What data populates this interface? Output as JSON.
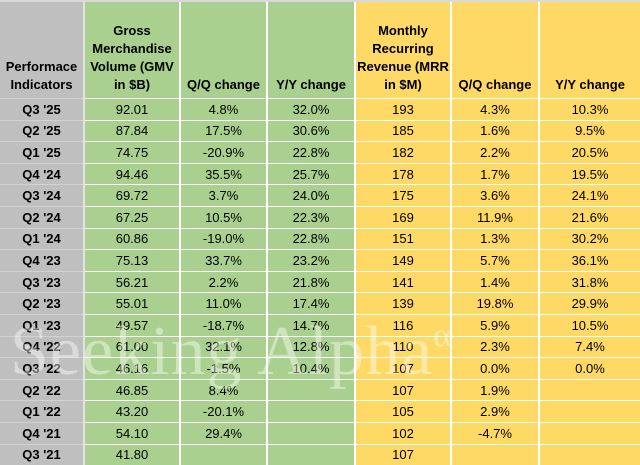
{
  "table": {
    "corner_header": "Performace Indicators",
    "headers": {
      "gmv": "Gross Merchandise Volume (GMV in $B)",
      "gmv_qq": "Q/Q change",
      "gmv_yy": "Y/Y change",
      "mrr": "Monthly Recurring Revenue (MRR in $M)",
      "mrr_qq": "Q/Q change",
      "mrr_yy": "Y/Y change"
    },
    "rows": [
      {
        "period": "Q3 '25",
        "gmv": "92.01",
        "gmv_qq": "4.8%",
        "gmv_yy": "32.0%",
        "mrr": "193",
        "mrr_qq": "4.3%",
        "mrr_yy": "10.3%"
      },
      {
        "period": "Q2 '25",
        "gmv": "87.84",
        "gmv_qq": "17.5%",
        "gmv_yy": "30.6%",
        "mrr": "185",
        "mrr_qq": "1.6%",
        "mrr_yy": "9.5%"
      },
      {
        "period": "Q1 '25",
        "gmv": "74.75",
        "gmv_qq": "-20.9%",
        "gmv_yy": "22.8%",
        "mrr": "182",
        "mrr_qq": "2.2%",
        "mrr_yy": "20.5%"
      },
      {
        "period": "Q4 '24",
        "gmv": "94.46",
        "gmv_qq": "35.5%",
        "gmv_yy": "25.7%",
        "mrr": "178",
        "mrr_qq": "1.7%",
        "mrr_yy": "19.5%"
      },
      {
        "period": "Q3 '24",
        "gmv": "69.72",
        "gmv_qq": "3.7%",
        "gmv_yy": "24.0%",
        "mrr": "175",
        "mrr_qq": "3.6%",
        "mrr_yy": "24.1%"
      },
      {
        "period": "Q2 '24",
        "gmv": "67.25",
        "gmv_qq": "10.5%",
        "gmv_yy": "22.3%",
        "mrr": "169",
        "mrr_qq": "11.9%",
        "mrr_yy": "21.6%"
      },
      {
        "period": "Q1 '24",
        "gmv": "60.86",
        "gmv_qq": "-19.0%",
        "gmv_yy": "22.8%",
        "mrr": "151",
        "mrr_qq": "1.3%",
        "mrr_yy": "30.2%"
      },
      {
        "period": "Q4 '23",
        "gmv": "75.13",
        "gmv_qq": "33.7%",
        "gmv_yy": "23.2%",
        "mrr": "149",
        "mrr_qq": "5.7%",
        "mrr_yy": "36.1%"
      },
      {
        "period": "Q3 '23",
        "gmv": "56.21",
        "gmv_qq": "2.2%",
        "gmv_yy": "21.8%",
        "mrr": "141",
        "mrr_qq": "1.4%",
        "mrr_yy": "31.8%"
      },
      {
        "period": "Q2 '23",
        "gmv": "55.01",
        "gmv_qq": "11.0%",
        "gmv_yy": "17.4%",
        "mrr": "139",
        "mrr_qq": "19.8%",
        "mrr_yy": "29.9%"
      },
      {
        "period": "Q1 '23",
        "gmv": "49.57",
        "gmv_qq": "-18.7%",
        "gmv_yy": "14.7%",
        "mrr": "116",
        "mrr_qq": "5.9%",
        "mrr_yy": "10.5%"
      },
      {
        "period": "Q4 '22",
        "gmv": "61.00",
        "gmv_qq": "32.1%",
        "gmv_yy": "12.8%",
        "mrr": "110",
        "mrr_qq": "2.3%",
        "mrr_yy": "7.4%"
      },
      {
        "period": "Q3 '22",
        "gmv": "46.16",
        "gmv_qq": "-1.5%",
        "gmv_yy": "10.4%",
        "mrr": "107",
        "mrr_qq": "0.0%",
        "mrr_yy": "0.0%"
      },
      {
        "period": "Q2 '22",
        "gmv": "46.85",
        "gmv_qq": "8.4%",
        "gmv_yy": "",
        "mrr": "107",
        "mrr_qq": "1.9%",
        "mrr_yy": ""
      },
      {
        "period": "Q1 '22",
        "gmv": "43.20",
        "gmv_qq": "-20.1%",
        "gmv_yy": "",
        "mrr": "105",
        "mrr_qq": "2.9%",
        "mrr_yy": ""
      },
      {
        "period": "Q4 '21",
        "gmv": "54.10",
        "gmv_qq": "29.4%",
        "gmv_yy": "",
        "mrr": "102",
        "mrr_qq": "-4.7%",
        "mrr_yy": ""
      },
      {
        "period": "Q3 '21",
        "gmv": "41.80",
        "gmv_qq": "",
        "gmv_yy": "",
        "mrr": "107",
        "mrr_qq": "",
        "mrr_yy": ""
      }
    ]
  },
  "watermark": {
    "text": "Seeking Alpha",
    "mark": "α"
  },
  "colors": {
    "row_header_gray": "#BFBFBF",
    "gmv_green": "#A9D08E",
    "mrr_yellow": "#FFD966",
    "cell_border": "#FFFFFF",
    "text": "#000000"
  },
  "chart_data": {
    "type": "table",
    "title": "Performace Indicators",
    "categories": [
      "Q3 '25",
      "Q2 '25",
      "Q1 '25",
      "Q4 '24",
      "Q3 '24",
      "Q2 '24",
      "Q1 '24",
      "Q4 '23",
      "Q3 '23",
      "Q2 '23",
      "Q1 '23",
      "Q4 '22",
      "Q3 '22",
      "Q2 '22",
      "Q1 '22",
      "Q4 '21",
      "Q3 '21"
    ],
    "series": [
      {
        "name": "Gross Merchandise Volume (GMV in $B)",
        "values": [
          92.01,
          87.84,
          74.75,
          94.46,
          69.72,
          67.25,
          60.86,
          75.13,
          56.21,
          55.01,
          49.57,
          61.0,
          46.16,
          46.85,
          43.2,
          54.1,
          41.8
        ]
      },
      {
        "name": "GMV Q/Q change",
        "values": [
          "4.8%",
          "17.5%",
          "-20.9%",
          "35.5%",
          "3.7%",
          "10.5%",
          "-19.0%",
          "33.7%",
          "2.2%",
          "11.0%",
          "-18.7%",
          "32.1%",
          "-1.5%",
          "8.4%",
          "-20.1%",
          "29.4%",
          null
        ]
      },
      {
        "name": "GMV Y/Y change",
        "values": [
          "32.0%",
          "30.6%",
          "22.8%",
          "25.7%",
          "24.0%",
          "22.3%",
          "22.8%",
          "23.2%",
          "21.8%",
          "17.4%",
          "14.7%",
          "12.8%",
          "10.4%",
          null,
          null,
          null,
          null
        ]
      },
      {
        "name": "Monthly Recurring Revenue (MRR in $M)",
        "values": [
          193,
          185,
          182,
          178,
          175,
          169,
          151,
          149,
          141,
          139,
          116,
          110,
          107,
          107,
          105,
          102,
          107
        ]
      },
      {
        "name": "MRR Q/Q change",
        "values": [
          "4.3%",
          "1.6%",
          "2.2%",
          "1.7%",
          "3.6%",
          "11.9%",
          "1.3%",
          "5.7%",
          "1.4%",
          "19.8%",
          "5.9%",
          "2.3%",
          "0.0%",
          "1.9%",
          "2.9%",
          "-4.7%",
          null
        ]
      },
      {
        "name": "MRR Y/Y change",
        "values": [
          "10.3%",
          "9.5%",
          "20.5%",
          "19.5%",
          "24.1%",
          "21.6%",
          "30.2%",
          "36.1%",
          "31.8%",
          "29.9%",
          "10.5%",
          "7.4%",
          "0.0%",
          null,
          null,
          null,
          null
        ]
      }
    ]
  }
}
